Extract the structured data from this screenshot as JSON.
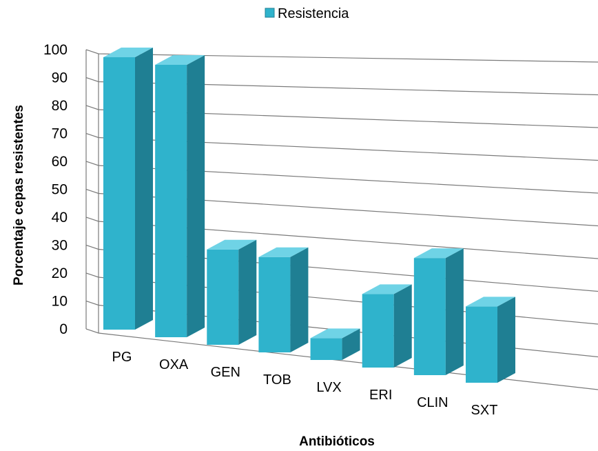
{
  "chart_data": {
    "type": "bar",
    "style": "3d-perspective",
    "categories": [
      "PG",
      "OXA",
      "GEN",
      "TOB",
      "LVX",
      "ERI",
      "CLIN",
      "SXT"
    ],
    "series": [
      {
        "name": "Resistencia",
        "values": [
          100,
          100,
          35,
          35,
          8,
          27,
          43,
          28
        ]
      }
    ],
    "xlabel": "Antibióticos",
    "ylabel": "Porcentaje  cepas resistentes",
    "ylim": [
      0,
      100
    ],
    "yticks": [
      "0",
      "10",
      "20",
      "30",
      "40",
      "50",
      "60",
      "70",
      "80",
      "90",
      "100"
    ],
    "grid": true,
    "legend": "top-center",
    "colors": {
      "bar_front": "#2fb3cc",
      "bar_side": "#1f7f93",
      "bar_top": "#6fd3e6",
      "grid": "#7a7a7a"
    }
  }
}
